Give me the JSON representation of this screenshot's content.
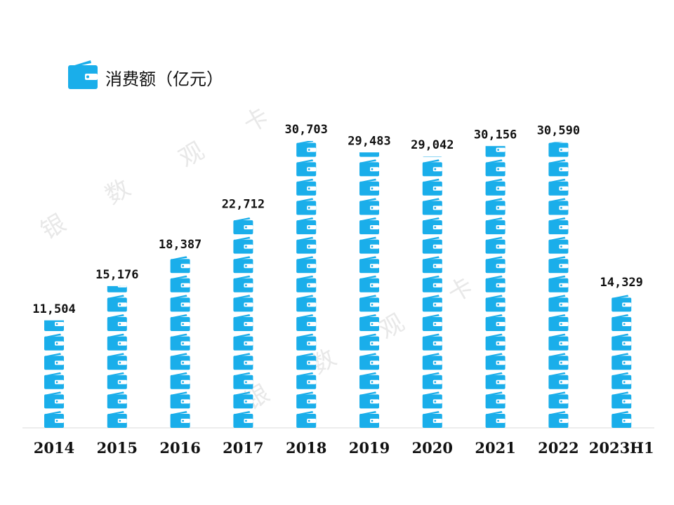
{
  "legend": {
    "icon": "wallet-icon",
    "label": "消费额（亿元）"
  },
  "watermark": [
    "银",
    "数",
    "观",
    "卡"
  ],
  "colors": {
    "accent": "#1aaeea",
    "axis": "#d8d8d8",
    "text": "#111111",
    "watermark": "#e8e8e8"
  },
  "chart_data": {
    "type": "bar",
    "categories": [
      "2014",
      "2015",
      "2016",
      "2017",
      "2018",
      "2019",
      "2020",
      "2021",
      "2022",
      "2023H1"
    ],
    "series": [
      {
        "name": "消费额（亿元）",
        "values": [
          11504,
          15176,
          18387,
          22712,
          30703,
          29483,
          29042,
          30156,
          30590,
          14329
        ],
        "labels": [
          "11,504",
          "15,176",
          "18,387",
          "22,712",
          "30,703",
          "29,483",
          "29,042",
          "30,156",
          "30,590",
          "14,329"
        ]
      }
    ],
    "ylim": [
      0,
      30703
    ],
    "grid": false,
    "mark_style": "stacked wallet-icon pictograph"
  }
}
